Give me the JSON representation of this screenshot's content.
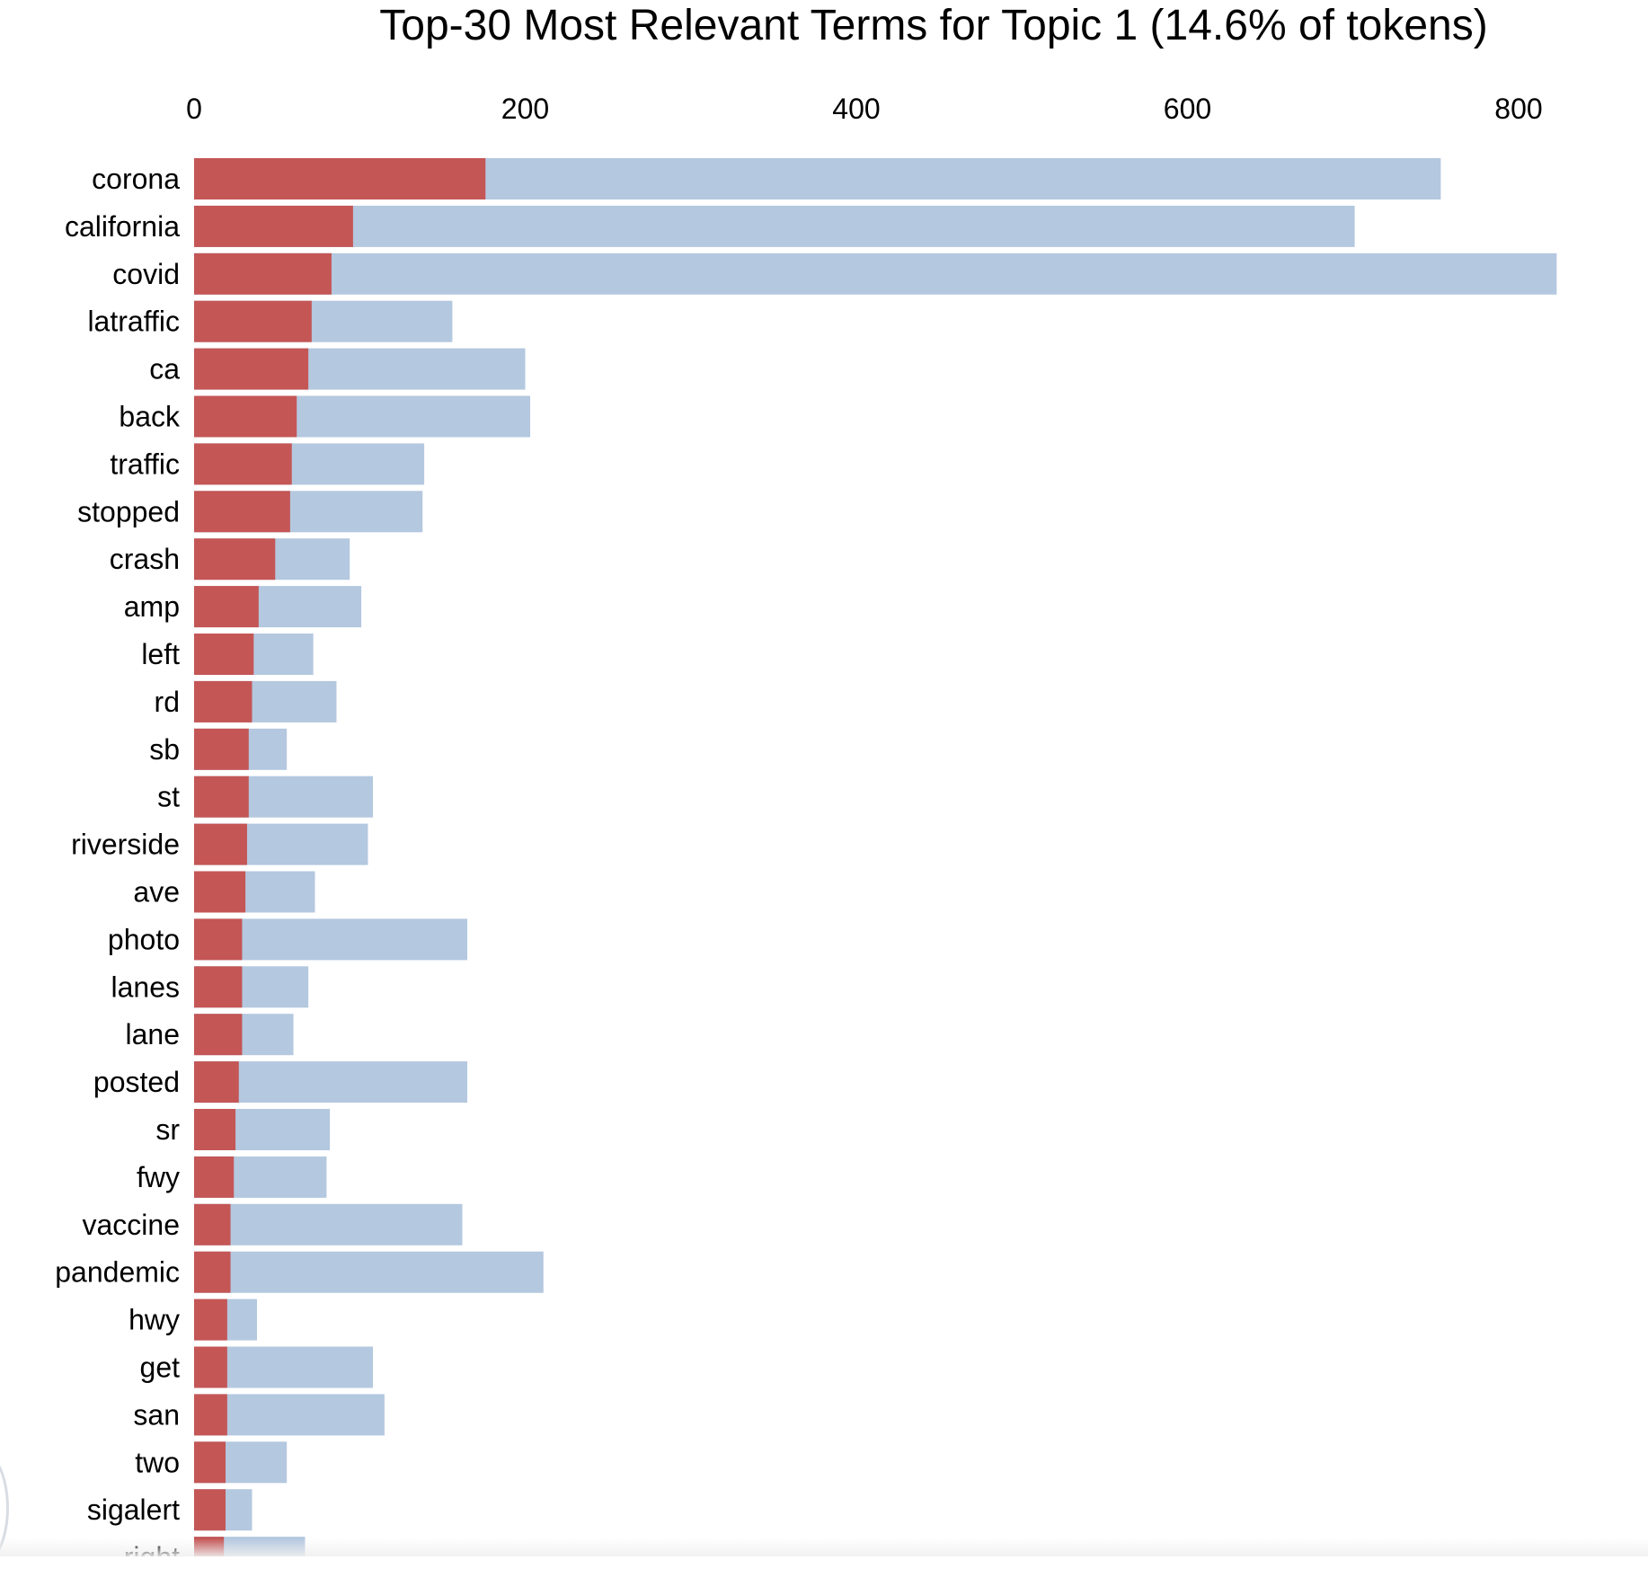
{
  "chart_data": {
    "type": "bar",
    "orientation": "horizontal",
    "title": "Top-30 Most Relevant Terms for Topic 1 (14.6% of tokens)",
    "xlim": [
      0,
      825
    ],
    "xticks": [
      0,
      200,
      400,
      600,
      800
    ],
    "categories": [
      "corona",
      "california",
      "covid",
      "latraffic",
      "ca",
      "back",
      "traffic",
      "stopped",
      "crash",
      "amp",
      "left",
      "rd",
      "sb",
      "st",
      "riverside",
      "ave",
      "photo",
      "lanes",
      "lane",
      "posted",
      "sr",
      "fwy",
      "vaccine",
      "pandemic",
      "hwy",
      "get",
      "san",
      "two",
      "sigalert",
      "right"
    ],
    "series": [
      {
        "values": [
          753,
          701,
          823,
          156,
          200,
          203,
          139,
          138,
          94,
          101,
          72,
          86,
          56,
          108,
          105,
          73,
          165,
          69,
          60,
          165,
          82,
          80,
          162,
          211,
          38,
          108,
          115,
          56,
          35,
          67
        ]
      },
      {
        "values": [
          176,
          96,
          83,
          71,
          69,
          62,
          59,
          58,
          49,
          39,
          36,
          35,
          33,
          33,
          32,
          31,
          29,
          29,
          29,
          27,
          25,
          24,
          22,
          22,
          20,
          20,
          20,
          19,
          19,
          18
        ]
      }
    ],
    "colors": {
      "overall": "#b4c8df",
      "topic": "#c45656"
    },
    "grid": false,
    "legend": "none"
  }
}
